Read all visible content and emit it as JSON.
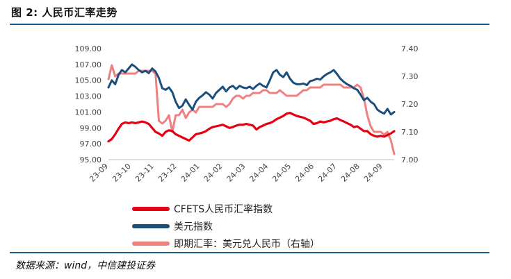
{
  "figure_title": "图 2: 人民币汇率走势",
  "source_note": "数据来源：wind，中信建投证券",
  "chart_data": {
    "type": "line",
    "y_left": {
      "ticks": [
        "109.00",
        "107.00",
        "105.00",
        "103.00",
        "101.00",
        "99.00",
        "97.00",
        "95.00"
      ],
      "lim": [
        95,
        109
      ]
    },
    "y_right": {
      "ticks": [
        "7.40",
        "7.30",
        "7.20",
        "7.10",
        "7.00"
      ],
      "lim": [
        7.0,
        7.4
      ]
    },
    "x_ticks": [
      "23-09",
      "23-10",
      "23-11",
      "23-12",
      "24-01",
      "24-02",
      "24-03",
      "24-04",
      "24-05",
      "24-06",
      "24-07",
      "24-08",
      "24-09"
    ],
    "series": [
      {
        "name": "CFETS人民币汇率指数",
        "color": "#e60012",
        "axis": "left",
        "values": [
          97.3,
          97.6,
          98.2,
          98.9,
          99.5,
          99.7,
          99.6,
          99.7,
          99.6,
          99.7,
          99.8,
          99.7,
          99.5,
          99.0,
          98.5,
          98.3,
          98.0,
          98.5,
          98.7,
          98.6,
          98.2,
          98.0,
          97.8,
          97.6,
          97.4,
          97.8,
          98.2,
          98.3,
          98.4,
          98.6,
          98.9,
          99.1,
          99.2,
          99.3,
          99.4,
          99.2,
          99.0,
          99.1,
          99.3,
          99.4,
          99.4,
          99.5,
          99.4,
          99.3,
          98.8,
          99.1,
          99.3,
          99.5,
          99.6,
          99.8,
          100.1,
          100.3,
          100.5,
          100.8,
          100.9,
          100.7,
          100.5,
          100.4,
          100.3,
          100.1,
          99.9,
          99.5,
          99.6,
          99.8,
          99.7,
          99.8,
          99.9,
          100.1,
          100.2,
          100.0,
          99.8,
          99.6,
          99.4,
          99.1,
          99.2,
          98.9,
          98.6,
          98.6,
          98.2,
          98.0,
          97.9,
          98.0,
          97.9,
          98.1,
          98.3,
          98.6
        ]
      },
      {
        "name": "美元指数",
        "color": "#1b4f7a",
        "axis": "left",
        "values": [
          104.1,
          105.0,
          104.5,
          105.7,
          106.3,
          106.0,
          106.5,
          107.0,
          106.7,
          106.3,
          106.0,
          106.2,
          105.9,
          106.5,
          106.1,
          105.3,
          104.0,
          103.8,
          104.1,
          103.5,
          102.3,
          101.5,
          101.8,
          102.6,
          101.9,
          101.3,
          102.3,
          102.8,
          103.1,
          103.5,
          103.2,
          102.7,
          103.4,
          103.8,
          104.2,
          103.6,
          104.1,
          104.3,
          103.9,
          104.3,
          104.1,
          104.0,
          104.2,
          103.9,
          104.3,
          104.6,
          104.3,
          104.1,
          105.0,
          106.0,
          106.3,
          105.7,
          105.4,
          106.0,
          105.2,
          104.7,
          104.5,
          104.5,
          104.6,
          104.4,
          104.9,
          105.0,
          105.2,
          105.1,
          105.5,
          105.8,
          106.0,
          106.3,
          105.8,
          105.2,
          104.8,
          104.5,
          104.3,
          104.0,
          103.8,
          103.2,
          102.5,
          102.8,
          102.3,
          102.0,
          101.3,
          101.0,
          100.8,
          101.4,
          100.7,
          101.0
        ]
      },
      {
        "name": "即期汇率：美元兑人民币（右轴）",
        "color": "#f08080",
        "axis": "right",
        "values": [
          7.29,
          7.34,
          7.3,
          7.31,
          7.31,
          7.31,
          7.31,
          7.31,
          7.31,
          7.32,
          7.32,
          7.32,
          7.32,
          7.32,
          7.31,
          7.14,
          7.13,
          7.14,
          7.16,
          7.1,
          7.16,
          7.16,
          7.18,
          7.15,
          7.17,
          7.18,
          7.17,
          7.19,
          7.19,
          7.19,
          7.19,
          7.19,
          7.2,
          7.2,
          7.2,
          7.19,
          7.2,
          7.22,
          7.23,
          7.23,
          7.22,
          7.23,
          7.23,
          7.24,
          7.24,
          7.24,
          7.25,
          7.25,
          7.24,
          7.24,
          7.24,
          7.25,
          7.24,
          7.23,
          7.23,
          7.23,
          7.23,
          7.24,
          7.25,
          7.25,
          7.26,
          7.26,
          7.26,
          7.26,
          7.27,
          7.27,
          7.27,
          7.27,
          7.27,
          7.27,
          7.26,
          7.26,
          7.26,
          7.26,
          7.27,
          7.26,
          7.22,
          7.16,
          7.12,
          7.1,
          7.1,
          7.1,
          7.09,
          7.1,
          7.07,
          7.02
        ]
      }
    ]
  }
}
